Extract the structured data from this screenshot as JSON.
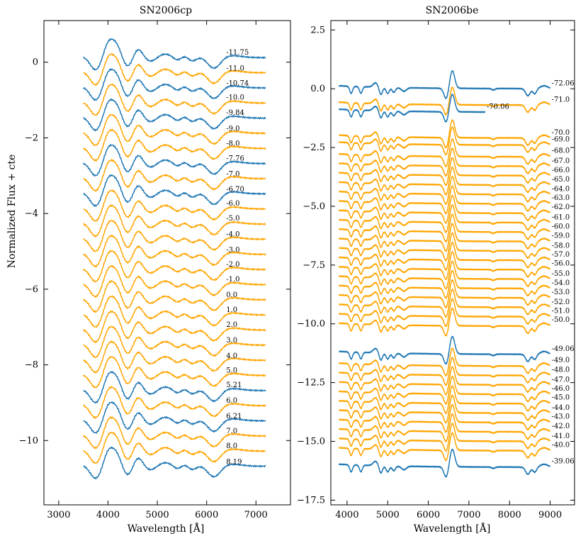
{
  "figure": {
    "ylabel": "Normalized Flux + cte"
  },
  "colors": {
    "blue": "#1f77b4",
    "orange": "#ffa500"
  },
  "chart_data": [
    {
      "type": "line",
      "title": "SN2006cp",
      "xlabel": "Wavelength [Å]",
      "ylabel": "Normalized Flux + cte",
      "xlim": [
        2700,
        7700
      ],
      "ylim": [
        -11.7,
        1.1
      ],
      "xticks": [
        3000,
        4000,
        5000,
        6000,
        7000
      ],
      "yticks": [
        0,
        -2,
        -4,
        -6,
        -8,
        -10
      ],
      "series": [
        {
          "name": "-11.75",
          "offset": 0.0,
          "color": "blue",
          "x_start": 3500,
          "x_end": 7200
        },
        {
          "name": "-11.0",
          "offset": -0.4,
          "color": "orange",
          "x_start": 3500,
          "x_end": 7200
        },
        {
          "name": "-10.74",
          "offset": -0.8,
          "color": "blue",
          "x_start": 3500,
          "x_end": 7200
        },
        {
          "name": "-10.0",
          "offset": -1.2,
          "color": "orange",
          "x_start": 3500,
          "x_end": 7200
        },
        {
          "name": "-9.84",
          "offset": -1.6,
          "color": "blue",
          "x_start": 3500,
          "x_end": 7200
        },
        {
          "name": "-9.0",
          "offset": -2.0,
          "color": "orange",
          "x_start": 3500,
          "x_end": 7200
        },
        {
          "name": "-8.0",
          "offset": -2.4,
          "color": "orange",
          "x_start": 3500,
          "x_end": 7200
        },
        {
          "name": "-7.76",
          "offset": -2.8,
          "color": "blue",
          "x_start": 3500,
          "x_end": 7200
        },
        {
          "name": "-7.0",
          "offset": -3.2,
          "color": "orange",
          "x_start": 3500,
          "x_end": 7200
        },
        {
          "name": "-6.70",
          "offset": -3.6,
          "color": "blue",
          "x_start": 3500,
          "x_end": 7200
        },
        {
          "name": "-6.0",
          "offset": -4.0,
          "color": "orange",
          "x_start": 3500,
          "x_end": 7200
        },
        {
          "name": "-5.0",
          "offset": -4.4,
          "color": "orange",
          "x_start": 3500,
          "x_end": 7200
        },
        {
          "name": "-4.0",
          "offset": -4.8,
          "color": "orange",
          "x_start": 3500,
          "x_end": 7200
        },
        {
          "name": "-3.0",
          "offset": -5.2,
          "color": "orange",
          "x_start": 3500,
          "x_end": 7200
        },
        {
          "name": "-2.0",
          "offset": -5.6,
          "color": "orange",
          "x_start": 3500,
          "x_end": 7200
        },
        {
          "name": "-1.0",
          "offset": -6.0,
          "color": "orange",
          "x_start": 3500,
          "x_end": 7200
        },
        {
          "name": "0.0",
          "offset": -6.4,
          "color": "orange",
          "x_start": 3500,
          "x_end": 7200
        },
        {
          "name": "1.0",
          "offset": -6.8,
          "color": "orange",
          "x_start": 3500,
          "x_end": 7200
        },
        {
          "name": "2.0",
          "offset": -7.2,
          "color": "orange",
          "x_start": 3500,
          "x_end": 7200
        },
        {
          "name": "3.0",
          "offset": -7.6,
          "color": "orange",
          "x_start": 3500,
          "x_end": 7200
        },
        {
          "name": "4.0",
          "offset": -8.0,
          "color": "orange",
          "x_start": 3500,
          "x_end": 7200
        },
        {
          "name": "5.0",
          "offset": -8.4,
          "color": "orange",
          "x_start": 3500,
          "x_end": 7200
        },
        {
          "name": "5.21",
          "offset": -8.8,
          "color": "blue",
          "x_start": 3500,
          "x_end": 7200
        },
        {
          "name": "6.0",
          "offset": -9.2,
          "color": "orange",
          "x_start": 3500,
          "x_end": 7200
        },
        {
          "name": "6.21",
          "offset": -9.6,
          "color": "blue",
          "x_start": 3500,
          "x_end": 7200
        },
        {
          "name": "7.0",
          "offset": -10.0,
          "color": "orange",
          "x_start": 3500,
          "x_end": 7200
        },
        {
          "name": "8.0",
          "offset": -10.4,
          "color": "orange",
          "x_start": 3500,
          "x_end": 7200
        },
        {
          "name": "8.19",
          "offset": -10.8,
          "color": "blue",
          "x_start": 3500,
          "x_end": 7200
        }
      ]
    },
    {
      "type": "line",
      "title": "SN2006be",
      "xlabel": "Wavelength [Å]",
      "ylabel": "",
      "xlim": [
        3600,
        9600
      ],
      "ylim": [
        -17.7,
        2.9
      ],
      "xticks": [
        4000,
        5000,
        6000,
        7000,
        8000,
        9000
      ],
      "yticks": [
        2.5,
        0.0,
        -2.5,
        -5.0,
        -7.5,
        -10.0,
        -12.5,
        -15.0,
        -17.5
      ],
      "series": [
        {
          "name": "-72.06",
          "offset": 0.0,
          "color": "blue",
          "x_start": 3800,
          "x_end": 9000
        },
        {
          "name": "-71.0",
          "offset": -0.7,
          "color": "orange",
          "x_start": 3800,
          "x_end": 9000
        },
        {
          "name": "-70.06",
          "offset": -1.0,
          "color": "blue",
          "x_start": 3800,
          "x_end": 7400
        },
        {
          "name": "-70.0",
          "offset": -2.1,
          "color": "orange",
          "x_start": 3800,
          "x_end": 9000
        },
        {
          "name": "-69.0",
          "offset": -2.4,
          "color": "orange",
          "x_start": 3800,
          "x_end": 9000
        },
        {
          "name": "-68.0",
          "offset": -2.9,
          "color": "orange",
          "x_start": 3800,
          "x_end": 9000
        },
        {
          "name": "-67.0",
          "offset": -3.3,
          "color": "orange",
          "x_start": 3800,
          "x_end": 9000
        },
        {
          "name": "-66.0",
          "offset": -3.7,
          "color": "orange",
          "x_start": 3800,
          "x_end": 9000
        },
        {
          "name": "-65.0",
          "offset": -4.1,
          "color": "orange",
          "x_start": 3800,
          "x_end": 9000
        },
        {
          "name": "-64.0",
          "offset": -4.5,
          "color": "orange",
          "x_start": 3800,
          "x_end": 9000
        },
        {
          "name": "-63.0",
          "offset": -4.9,
          "color": "orange",
          "x_start": 3800,
          "x_end": 9000
        },
        {
          "name": "-62.0",
          "offset": -5.3,
          "color": "orange",
          "x_start": 3800,
          "x_end": 9000
        },
        {
          "name": "-61.0",
          "offset": -5.7,
          "color": "orange",
          "x_start": 3800,
          "x_end": 9000
        },
        {
          "name": "-60.0",
          "offset": -6.1,
          "color": "orange",
          "x_start": 3800,
          "x_end": 9000
        },
        {
          "name": "-59.0",
          "offset": -6.5,
          "color": "orange",
          "x_start": 3800,
          "x_end": 9000
        },
        {
          "name": "-58.0",
          "offset": -6.9,
          "color": "orange",
          "x_start": 3800,
          "x_end": 9000
        },
        {
          "name": "-57.0",
          "offset": -7.3,
          "color": "orange",
          "x_start": 3800,
          "x_end": 9000
        },
        {
          "name": "-56.0",
          "offset": -7.7,
          "color": "orange",
          "x_start": 3800,
          "x_end": 9000
        },
        {
          "name": "-55.0",
          "offset": -8.1,
          "color": "orange",
          "x_start": 3800,
          "x_end": 9000
        },
        {
          "name": "-54.0",
          "offset": -8.5,
          "color": "orange",
          "x_start": 3800,
          "x_end": 9000
        },
        {
          "name": "-53.0",
          "offset": -8.9,
          "color": "orange",
          "x_start": 3800,
          "x_end": 9000
        },
        {
          "name": "-52.0",
          "offset": -9.3,
          "color": "orange",
          "x_start": 3800,
          "x_end": 9000
        },
        {
          "name": "-51.0",
          "offset": -9.7,
          "color": "orange",
          "x_start": 3800,
          "x_end": 9000
        },
        {
          "name": "-50.0",
          "offset": -10.1,
          "color": "orange",
          "x_start": 3800,
          "x_end": 9000
        },
        {
          "name": "-49.06",
          "offset": -11.3,
          "color": "blue",
          "x_start": 3800,
          "x_end": 9000
        },
        {
          "name": "-49.0",
          "offset": -11.8,
          "color": "orange",
          "x_start": 3800,
          "x_end": 9000
        },
        {
          "name": "-48.0",
          "offset": -12.2,
          "color": "orange",
          "x_start": 3800,
          "x_end": 9000
        },
        {
          "name": "-47.0",
          "offset": -12.6,
          "color": "orange",
          "x_start": 3800,
          "x_end": 9000
        },
        {
          "name": "-46.0",
          "offset": -13.0,
          "color": "orange",
          "x_start": 3800,
          "x_end": 9000
        },
        {
          "name": "-45.0",
          "offset": -13.4,
          "color": "orange",
          "x_start": 3800,
          "x_end": 9000
        },
        {
          "name": "-44.0",
          "offset": -13.8,
          "color": "orange",
          "x_start": 3800,
          "x_end": 9000
        },
        {
          "name": "-43.0",
          "offset": -14.2,
          "color": "orange",
          "x_start": 3800,
          "x_end": 9000
        },
        {
          "name": "-42.0",
          "offset": -14.6,
          "color": "orange",
          "x_start": 3800,
          "x_end": 9000
        },
        {
          "name": "-41.0",
          "offset": -15.0,
          "color": "orange",
          "x_start": 3800,
          "x_end": 9000
        },
        {
          "name": "-40.0",
          "offset": -15.4,
          "color": "orange",
          "x_start": 3800,
          "x_end": 9000
        },
        {
          "name": "-39.06",
          "offset": -16.1,
          "color": "blue",
          "x_start": 3800,
          "x_end": 9000
        }
      ]
    }
  ]
}
